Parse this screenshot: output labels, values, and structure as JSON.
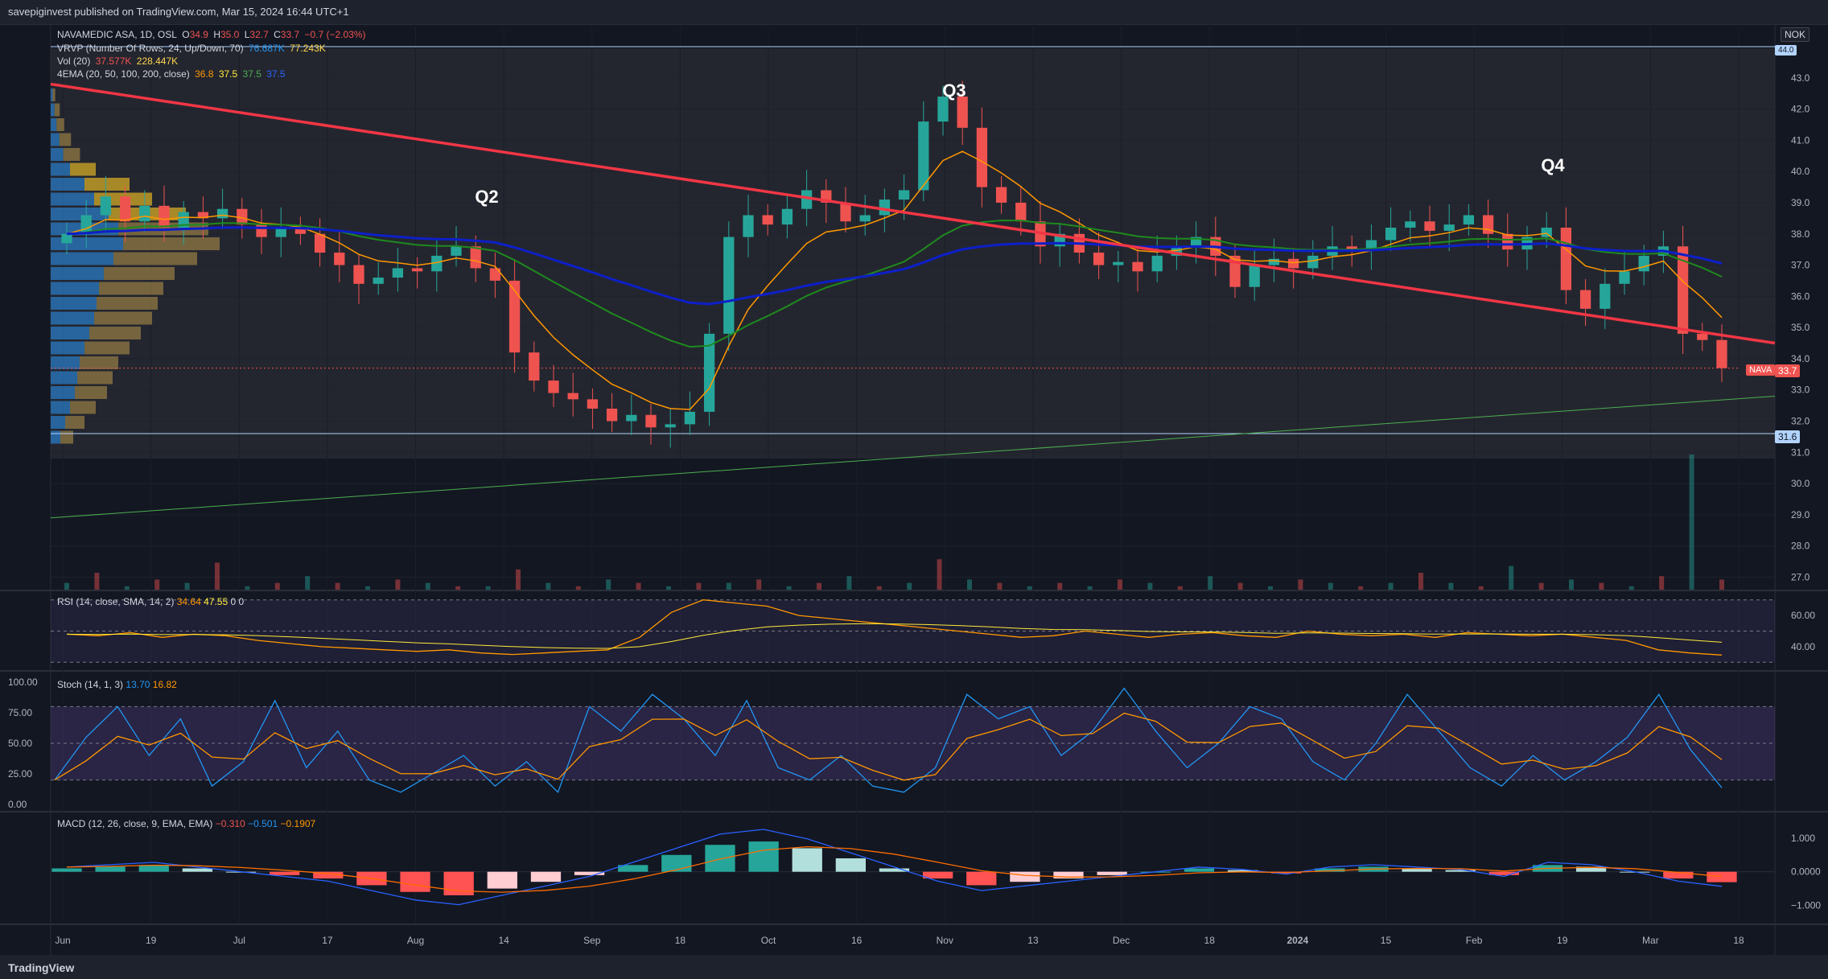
{
  "header": {
    "published": "savepiginvest published on TradingView.com, Mar 15, 2024 16:44 UTC+1"
  },
  "footer": {
    "logo_text": "TradingView"
  },
  "currency": "NOK",
  "legend": {
    "symbol": "NAVAMEDIC ASA, 1D, OSL",
    "o_label": "O",
    "o": "34.9",
    "h_label": "H",
    "h": "35.0",
    "l_label": "L",
    "l": "32.7",
    "c_label": "C",
    "c": "33.7",
    "change": "−0.7 (−2.03%)",
    "vrvp": "VRVP (Number Of Rows, 24, Up/Down, 70)",
    "vrvp_up": "76.687K",
    "vrvp_down": "77.243K",
    "vol": "Vol (20)",
    "vol_a": "37.577K",
    "vol_b": "228.447K",
    "ema": "4EMA (20, 50, 100, 200, close)",
    "ema20": "36.8",
    "ema50": "37.5",
    "ema100": "37.5",
    "ema200": "37.5"
  },
  "annotations": {
    "q2": "Q2",
    "q3": "Q3",
    "q4": "Q4"
  },
  "price_tags": {
    "top": "44.0",
    "bottom": "31.6",
    "last_symbol": "NAVA",
    "last": "33.7"
  },
  "rsi": {
    "label": "RSI (14, close, SMA, 14, 2)",
    "v1": "34.64",
    "v2": "47.55",
    "v3": "0",
    "v4": "0"
  },
  "stoch": {
    "label": "Stoch (14, 1, 3)",
    "k": "13.70",
    "d": "16.82"
  },
  "macd": {
    "label": "MACD (12, 26, close, 9, EMA, EMA)",
    "hist": "−0.310",
    "macd": "−0.501",
    "signal": "−0.1907"
  },
  "colors": {
    "up": "#26a69a",
    "down": "#ef5350",
    "ema20": "#ff9800",
    "ema50": "#1e8a1e",
    "ema100": "#0d1fc9",
    "trend": "#f23645",
    "support": "#4caf50"
  },
  "chart_data": [
    {
      "type": "candlestick",
      "title": "NAVAMEDIC ASA, 1D, OSL",
      "x_ticks": [
        "Jun",
        "19",
        "Jul",
        "17",
        "Aug",
        "14",
        "Sep",
        "18",
        "Oct",
        "16",
        "Nov",
        "13",
        "Dec",
        "18",
        "2024",
        "15",
        "Feb",
        "19",
        "Mar",
        "18"
      ],
      "y_ticks": [
        "27.0",
        "28.0",
        "29.0",
        "30.0",
        "31.0",
        "32.0",
        "33.0",
        "34.0",
        "35.0",
        "36.0",
        "37.0",
        "38.0",
        "39.0",
        "40.0",
        "41.0",
        "42.0",
        "43.0"
      ],
      "ylim": [
        26.6,
        44.0
      ],
      "close_path": [
        38.0,
        38.6,
        39.2,
        38.4,
        38.9,
        38.2,
        38.7,
        38.5,
        38.8,
        38.3,
        37.9,
        38.2,
        38.0,
        37.4,
        37.0,
        36.4,
        36.6,
        36.9,
        36.8,
        37.3,
        37.6,
        36.9,
        36.5,
        34.2,
        33.3,
        32.9,
        32.7,
        32.4,
        32.0,
        32.2,
        31.8,
        31.9,
        32.3,
        34.8,
        37.9,
        38.6,
        38.3,
        38.8,
        39.4,
        39.0,
        38.4,
        38.6,
        39.1,
        39.4,
        41.6,
        42.4,
        41.4,
        39.5,
        39.0,
        38.4,
        37.6,
        38.0,
        37.4,
        37.0,
        37.1,
        36.8,
        37.3,
        37.6,
        37.9,
        37.3,
        36.3,
        37.0,
        37.2,
        36.9,
        37.3,
        37.6,
        37.5,
        37.8,
        38.2,
        38.4,
        38.1,
        38.3,
        38.6,
        38.0,
        37.5,
        37.9,
        38.2,
        36.2,
        35.6,
        36.4,
        36.8,
        37.3,
        37.6,
        34.8,
        34.6,
        33.7
      ],
      "levels": {
        "resistance": 44.0,
        "support": 31.6,
        "last": 33.7
      },
      "series": [
        {
          "name": "4EMA 20",
          "last": 36.8
        },
        {
          "name": "4EMA 50",
          "last": 37.5
        },
        {
          "name": "4EMA 100",
          "last": 37.5
        },
        {
          "name": "4EMA 200",
          "last": 37.5
        }
      ],
      "annotations": [
        "Q2",
        "Q3",
        "Q4"
      ]
    },
    {
      "type": "line",
      "title": "RSI (14, close, SMA, 14, 2)",
      "y_ticks": [
        "40.00",
        "60.00"
      ],
      "values": [
        48,
        47,
        49,
        46,
        48,
        47,
        44,
        42,
        40,
        39,
        38,
        37,
        38,
        36,
        35,
        36,
        37,
        38,
        46,
        62,
        70,
        68,
        66,
        60,
        58,
        56,
        54,
        52,
        50,
        48,
        46,
        47,
        50,
        48,
        46,
        48,
        49,
        47,
        46,
        50,
        48,
        47,
        48,
        46,
        49,
        48,
        47,
        48,
        46,
        44,
        38,
        36,
        34.64
      ]
    },
    {
      "type": "line",
      "title": "Stoch (14, 1, 3)",
      "y_ticks": [
        "0.00",
        "25.00",
        "50.00",
        "75.00",
        "100.00"
      ],
      "ylim": [
        0,
        100
      ],
      "values": [
        20,
        55,
        80,
        40,
        70,
        15,
        35,
        85,
        30,
        60,
        20,
        10,
        25,
        40,
        15,
        35,
        10,
        80,
        60,
        90,
        70,
        40,
        85,
        30,
        20,
        40,
        15,
        10,
        30,
        90,
        70,
        80,
        40,
        60,
        95,
        60,
        30,
        50,
        80,
        70,
        35,
        20,
        50,
        90,
        60,
        30,
        15,
        40,
        20,
        35,
        55,
        90,
        45,
        13.7
      ]
    },
    {
      "type": "bar",
      "title": "MACD (12, 26, close, 9, EMA, EMA)",
      "y_ticks": [
        "−1.000",
        "0.0000",
        "1.000"
      ],
      "ylim": [
        -1.3,
        1.5
      ],
      "values": [
        0.1,
        0.15,
        0.2,
        0.1,
        0.0,
        -0.1,
        -0.2,
        -0.4,
        -0.6,
        -0.7,
        -0.5,
        -0.3,
        -0.1,
        0.2,
        0.5,
        0.8,
        0.9,
        0.7,
        0.4,
        0.1,
        -0.2,
        -0.4,
        -0.3,
        -0.2,
        -0.1,
        0.0,
        0.1,
        0.05,
        -0.05,
        0.1,
        0.15,
        0.1,
        0.05,
        -0.1,
        0.2,
        0.15,
        0.0,
        -0.2,
        -0.31
      ]
    }
  ]
}
